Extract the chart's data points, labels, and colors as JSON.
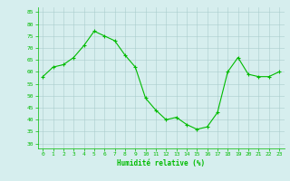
{
  "x": [
    0,
    1,
    2,
    3,
    4,
    5,
    6,
    7,
    8,
    9,
    10,
    11,
    12,
    13,
    14,
    15,
    16,
    17,
    18,
    19,
    20,
    21,
    22,
    23
  ],
  "y": [
    58,
    62,
    63,
    66,
    71,
    77,
    75,
    73,
    67,
    62,
    49,
    44,
    40,
    41,
    38,
    36,
    37,
    43,
    60,
    66,
    59,
    58,
    58,
    60
  ],
  "line_color": "#00bb00",
  "marker_color": "#00bb00",
  "bg_color": "#d6eeee",
  "grid_color": "#aacccc",
  "xlabel": "Humidité relative (%)",
  "xlabel_color": "#00bb00",
  "tick_color": "#00bb00",
  "ylim": [
    28,
    87
  ],
  "yticks": [
    30,
    35,
    40,
    45,
    50,
    55,
    60,
    65,
    70,
    75,
    80,
    85
  ],
  "xticks": [
    0,
    1,
    2,
    3,
    4,
    5,
    6,
    7,
    8,
    9,
    10,
    11,
    12,
    13,
    14,
    15,
    16,
    17,
    18,
    19,
    20,
    21,
    22,
    23
  ]
}
